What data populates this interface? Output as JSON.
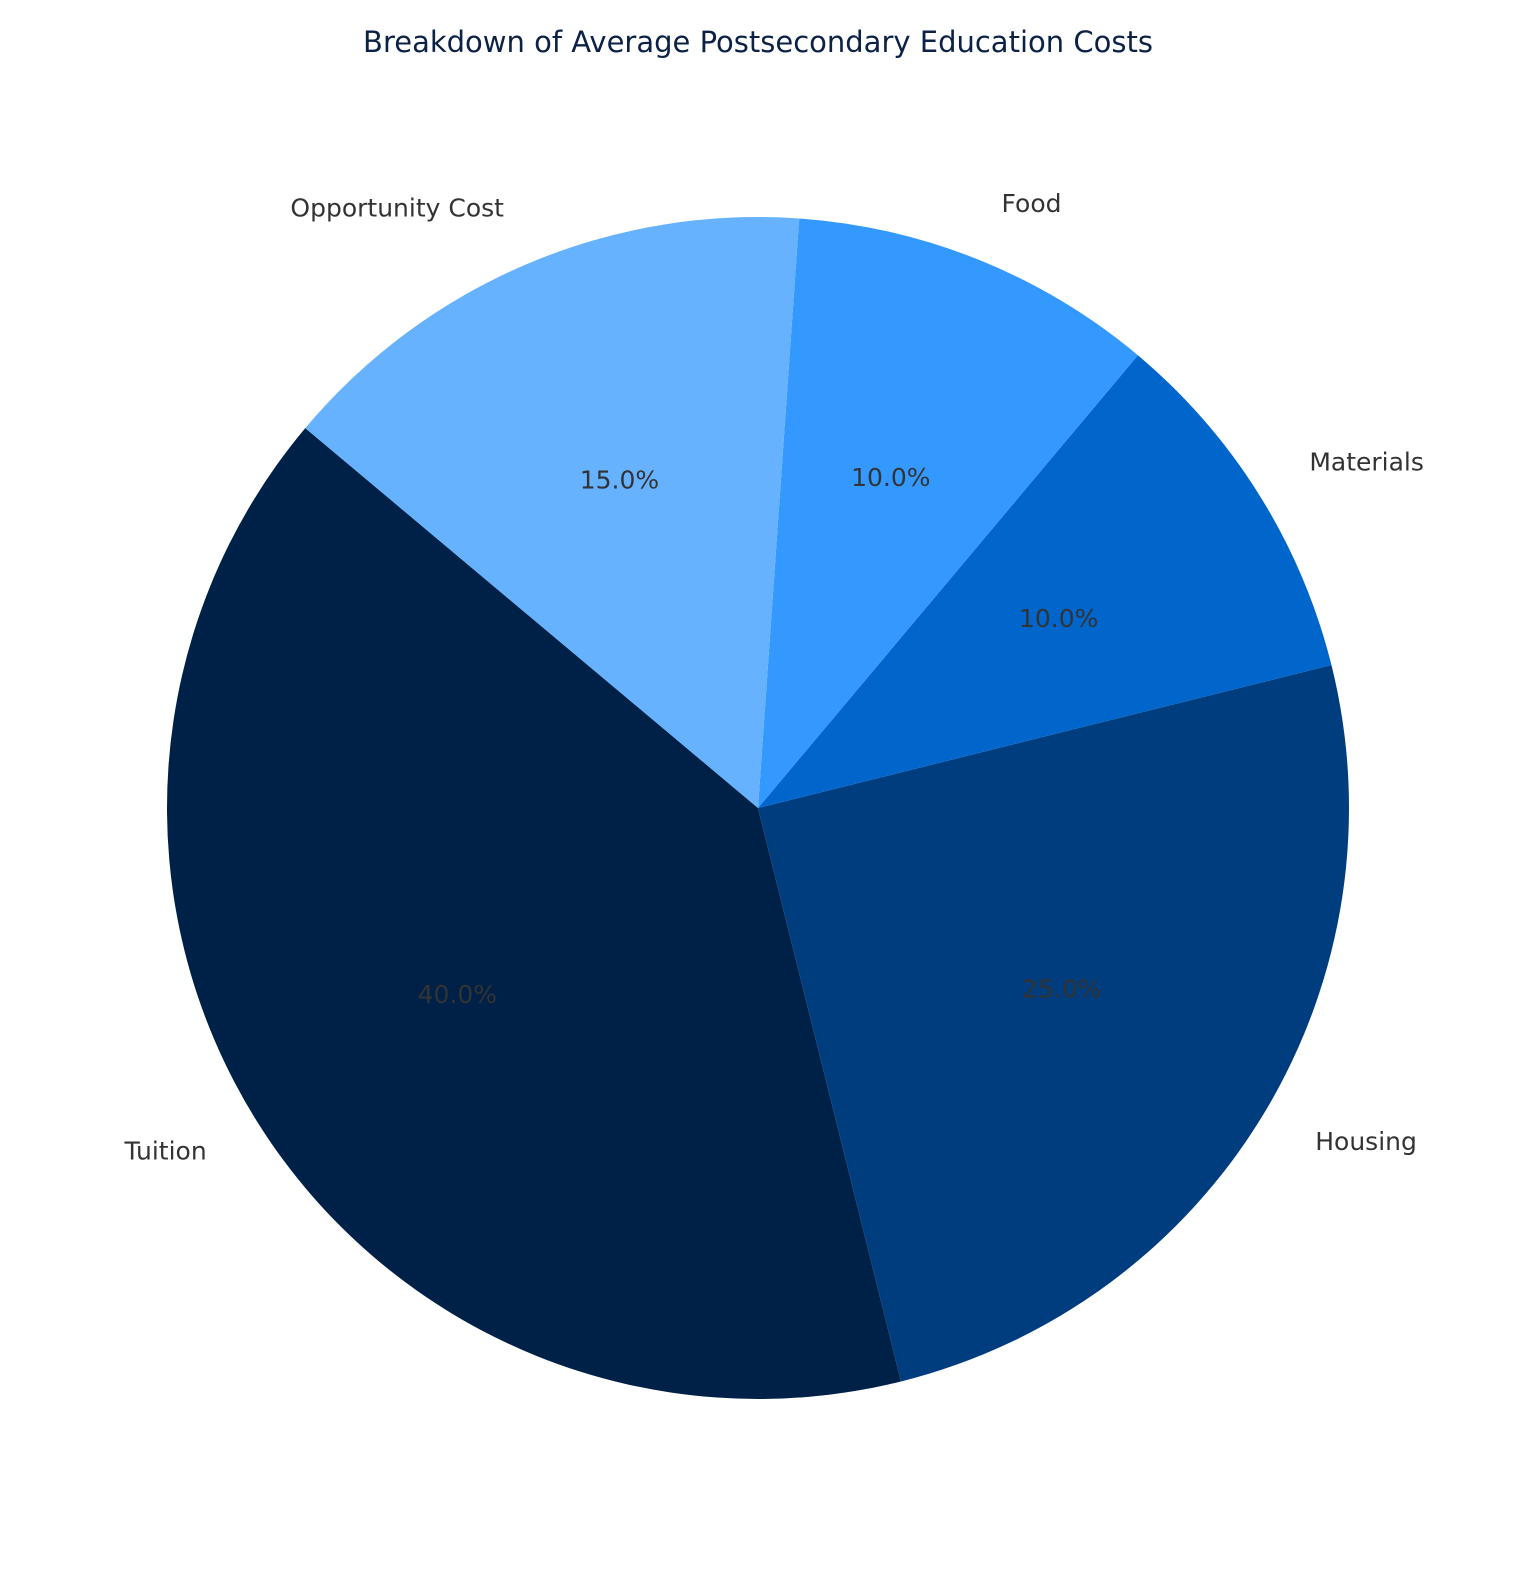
{
  "chart_data": {
    "type": "pie",
    "title": "Breakdown of Average Postsecondary Education Costs",
    "categories": [
      "Tuition",
      "Housing",
      "Materials",
      "Food",
      "Opportunity Cost"
    ],
    "values": [
      40,
      25,
      10,
      10,
      15
    ],
    "value_labels": [
      "40.0%",
      "25.0%",
      "10.0%",
      "10.0%",
      "15.0%"
    ],
    "colors": [
      "#002147",
      "#003d7e",
      "#0066cc",
      "#3399ff",
      "#66b2ff"
    ],
    "start_angle_deg": 140,
    "direction": "counterclockwise",
    "legend": "none"
  }
}
